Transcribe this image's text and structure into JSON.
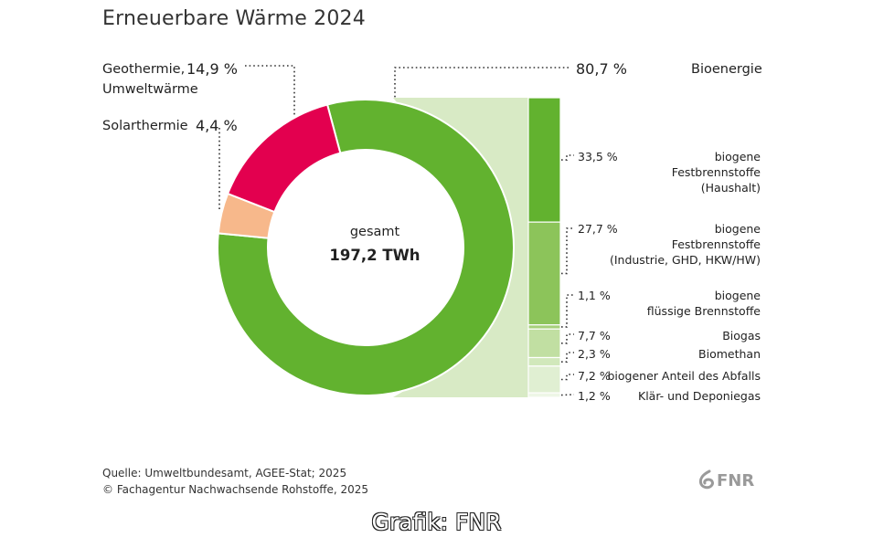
{
  "chart_data": {
    "type": "pie",
    "title": "Erneuerbare Wärme 2024",
    "center_label": "gesamt",
    "center_value": "197,2 TWh",
    "slices": [
      {
        "label": "Bioenergie",
        "value": 80.7,
        "display": "80,7 %",
        "color": "#62b22f"
      },
      {
        "label": "Geothermie, Umweltwärme",
        "line1": "Geothermie,",
        "line2": "Umweltwärme",
        "value": 14.9,
        "display": "14,9 %",
        "color": "#e3004f"
      },
      {
        "label": "Solarthermie",
        "value": 4.4,
        "display": "4,4 %",
        "color": "#f7b88b"
      }
    ],
    "breakdown": [
      {
        "lines": [
          "biogene",
          "Festbrennstoffe",
          "(Haushalt)"
        ],
        "value": 33.5,
        "display": "33,5 %",
        "color": "#62b22f"
      },
      {
        "lines": [
          "biogene",
          "Festbrennstoffe",
          "(Industrie, GHD, HKW/HW)"
        ],
        "value": 27.7,
        "display": "27,7 %",
        "color": "#8cc45a"
      },
      {
        "lines": [
          "biogene",
          "flüssige Brennstoffe"
        ],
        "value": 1.1,
        "display": "1,1 %",
        "color": "#a6d07a"
      },
      {
        "lines": [
          "Biogas"
        ],
        "value": 7.7,
        "display": "7,7 %",
        "color": "#c1dfa2"
      },
      {
        "lines": [
          "Biomethan"
        ],
        "value": 2.3,
        "display": "2,3 %",
        "color": "#d1e8bb"
      },
      {
        "lines": [
          "biogener Anteil des Abfalls"
        ],
        "value": 7.2,
        "display": "7,2 %",
        "color": "#e0efd2"
      },
      {
        "lines": [
          "Klär- und Deponiegas"
        ],
        "value": 1.2,
        "display": "1,2 %",
        "color": "#eef6e6"
      }
    ],
    "band_color": "#d8eac5"
  },
  "source": {
    "line1": "Quelle: Umweltbundesamt, AGEE-Stat; 2025",
    "line2": "© Fachagentur Nachwachsende Rohstoffe, 2025"
  },
  "logo_text": "FNR",
  "credit": "Grafik: FNR"
}
